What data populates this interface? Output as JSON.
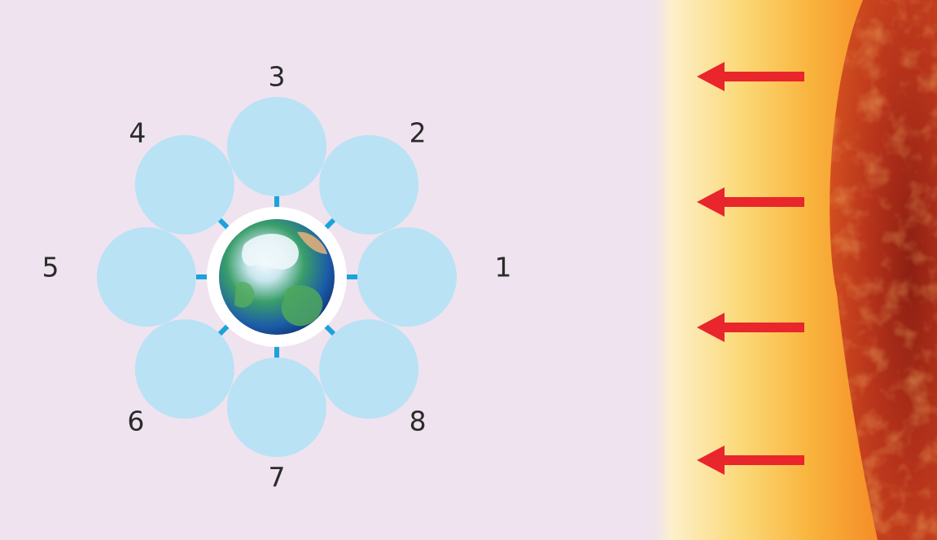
{
  "diagram": {
    "colors": {
      "background": "#efe3ef",
      "satellite_fill": "#b9e2f5",
      "spoke": "#1aa3dc",
      "arrow": "#e8262b",
      "halo": "#ffffff",
      "glow_inner": "#f1781f",
      "glow_outer": "#fde8b2",
      "sun_surface": "#b9301c"
    },
    "center": {
      "icon": "earth-globe-icon"
    },
    "sun": {
      "icon": "sun-surface-icon"
    },
    "positions": [
      {
        "label": "1"
      },
      {
        "label": "2"
      },
      {
        "label": "3"
      },
      {
        "label": "4"
      },
      {
        "label": "5"
      },
      {
        "label": "6"
      },
      {
        "label": "7"
      },
      {
        "label": "8"
      }
    ],
    "arrows": [
      {
        "icon": "arrow-left-icon"
      },
      {
        "icon": "arrow-left-icon"
      },
      {
        "icon": "arrow-left-icon"
      },
      {
        "icon": "arrow-left-icon"
      }
    ]
  }
}
